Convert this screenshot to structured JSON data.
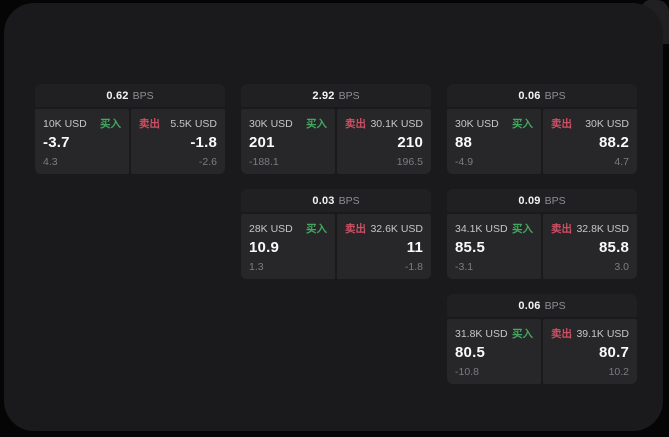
{
  "labels": {
    "bps_unit": "BPS",
    "buy": "买入",
    "sell": "卖出"
  },
  "colors": {
    "page_bg": "#050505",
    "panel_bg": "#1a1a1c",
    "card_header_bg": "#202023",
    "tile_bg": "#27272a",
    "accent_buy": "#42a85f",
    "accent_sell": "#cd4f63"
  },
  "cards": [
    {
      "row": 1,
      "col": 1,
      "bps": "0.62",
      "buy": {
        "size": "10K USD",
        "price": "-3.7",
        "change": "4.3"
      },
      "sell": {
        "size": "5.5K USD",
        "price": "-1.8",
        "change": "-2.6"
      }
    },
    {
      "row": 1,
      "col": 2,
      "bps": "2.92",
      "buy": {
        "size": "30K USD",
        "price": "201",
        "change": "-188.1"
      },
      "sell": {
        "size": "30.1K USD",
        "price": "210",
        "change": "196.5"
      }
    },
    {
      "row": 1,
      "col": 3,
      "bps": "0.06",
      "buy": {
        "size": "30K USD",
        "price": "88",
        "change": "-4.9"
      },
      "sell": {
        "size": "30K USD",
        "price": "88.2",
        "change": "4.7"
      }
    },
    {
      "row": 2,
      "col": 2,
      "bps": "0.03",
      "buy": {
        "size": "28K USD",
        "price": "10.9",
        "change": "1.3"
      },
      "sell": {
        "size": "32.6K USD",
        "price": "11",
        "change": "-1.8"
      }
    },
    {
      "row": 2,
      "col": 3,
      "bps": "0.09",
      "buy": {
        "size": "34.1K USD",
        "price": "85.5",
        "change": "-3.1"
      },
      "sell": {
        "size": "32.8K USD",
        "price": "85.8",
        "change": "3.0"
      }
    },
    {
      "row": 3,
      "col": 3,
      "bps": "0.06",
      "buy": {
        "size": "31.8K USD",
        "price": "80.5",
        "change": "-10.8"
      },
      "sell": {
        "size": "39.1K USD",
        "price": "80.7",
        "change": "10.2"
      }
    }
  ]
}
